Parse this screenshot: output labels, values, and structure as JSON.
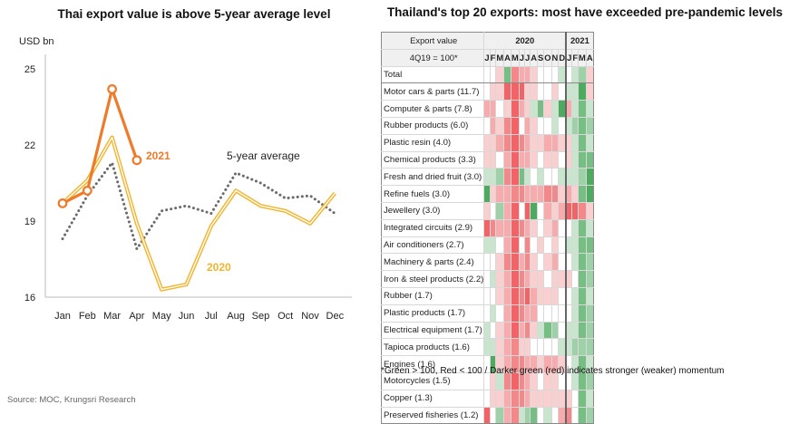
{
  "line_chart": {
    "title": "Thai export value is above 5-year average level",
    "y_unit": "USD bn",
    "months": [
      "Jan",
      "Feb",
      "Mar",
      "Apr",
      "May",
      "Jun",
      "Jul",
      "Aug",
      "Sep",
      "Oct",
      "Nov",
      "Dec"
    ],
    "yticks": [
      16,
      19,
      22,
      25
    ],
    "label_2021": "2021",
    "label_avg": "5-year average",
    "label_2020": "2020"
  },
  "chart_data": [
    {
      "type": "line",
      "title": "Thai export value is above 5-year average level",
      "ylabel": "USD bn",
      "ylim": [
        16,
        25
      ],
      "x": [
        "Jan",
        "Feb",
        "Mar",
        "Apr",
        "May",
        "Jun",
        "Jul",
        "Aug",
        "Sep",
        "Oct",
        "Nov",
        "Dec"
      ],
      "series": [
        {
          "name": "2021",
          "color": "#ef7a2a",
          "style": "solid-markers",
          "values": [
            19.7,
            20.2,
            24.2,
            21.4,
            null,
            null,
            null,
            null,
            null,
            null,
            null,
            null
          ]
        },
        {
          "name": "5-year average",
          "color": "#6b6b6b",
          "style": "dotted",
          "values": [
            18.3,
            20.0,
            21.3,
            17.9,
            19.4,
            19.6,
            19.3,
            20.9,
            20.5,
            19.9,
            20.0,
            19.3
          ]
        },
        {
          "name": "2020",
          "color": "#f3b32c",
          "style": "double",
          "values": [
            19.7,
            20.6,
            22.3,
            18.9,
            16.3,
            16.5,
            18.8,
            20.2,
            19.6,
            19.4,
            18.9,
            20.1
          ]
        }
      ],
      "grid": false,
      "legend": "direct-labels"
    },
    {
      "type": "heatmap",
      "title": "Thailand's top 20 exports: most have exceeded pre-pandemic levels",
      "header_label_1": "Export value",
      "header_label_2": "4Q19 = 100*",
      "years": [
        {
          "label": "2020",
          "span": 12
        },
        {
          "label": "2021",
          "span": 4
        }
      ],
      "months": [
        "J",
        "F",
        "M",
        "A",
        "M",
        "J",
        "J",
        "A",
        "S",
        "O",
        "N",
        "D",
        "J",
        "F",
        "M",
        "A"
      ],
      "legend_note": "*Green > 100, Red < 100 / Darker green (red) indicates stronger (weaker) momentum",
      "color_scale": {
        "positive": "#4daa5f",
        "negative": "#f06467",
        "neutral": "#ffffff"
      },
      "rows": [
        {
          "label": "Total",
          "values": [
            0,
            0,
            -1,
            3,
            -3,
            -2,
            -2,
            -1,
            0,
            0,
            0,
            1,
            0,
            1,
            2,
            -1
          ]
        },
        {
          "label": "Motor cars & parts (11.7)",
          "values": [
            0,
            -1,
            -1,
            -4,
            -4,
            -4,
            -1,
            -1,
            0,
            0,
            -1,
            0,
            1,
            1,
            4,
            -1
          ]
        },
        {
          "label": "Computer & parts (7.8)",
          "values": [
            -2,
            -2,
            0,
            -1,
            -4,
            -2,
            -1,
            1,
            3,
            -1,
            1,
            4,
            -2,
            1,
            3,
            1
          ]
        },
        {
          "label": "Rubber products (6.0)",
          "values": [
            0,
            -2,
            -1,
            -3,
            -4,
            0,
            -2,
            -1,
            0,
            0,
            1,
            0,
            1,
            2,
            3,
            2
          ]
        },
        {
          "label": "Plastic resin (4.0)",
          "values": [
            -1,
            -1,
            -2,
            -3,
            -4,
            -3,
            -2,
            -1,
            -1,
            -2,
            -2,
            -1,
            -1,
            1,
            3,
            1
          ]
        },
        {
          "label": "Chemical products (3.3)",
          "values": [
            -1,
            -1,
            0,
            -2,
            -4,
            -2,
            -2,
            -1,
            0,
            -1,
            -1,
            0,
            -1,
            1,
            3,
            3
          ]
        },
        {
          "label": "Fresh and dried fruit (3.0)",
          "values": [
            1,
            1,
            2,
            -3,
            -4,
            3,
            1,
            0,
            1,
            0,
            0,
            1,
            1,
            1,
            2,
            4
          ]
        },
        {
          "label": "Refine fuels (3.0)",
          "values": [
            4,
            -1,
            -2,
            -2,
            -3,
            -3,
            -2,
            -2,
            -2,
            -3,
            -3,
            -1,
            -2,
            -1,
            3,
            4
          ]
        },
        {
          "label": "Jewellery (3.0)",
          "values": [
            -1,
            0,
            2,
            -2,
            -4,
            0,
            -4,
            4,
            0,
            -2,
            -1,
            -2,
            -4,
            -4,
            -3,
            -1
          ]
        },
        {
          "label": "Integrated circuits (2.9)",
          "values": [
            -4,
            -3,
            -2,
            -2,
            -4,
            -3,
            -2,
            -1,
            0,
            -1,
            -2,
            0,
            0,
            1,
            3,
            1
          ]
        },
        {
          "label": "Air conditioners (2.7)",
          "values": [
            1,
            1,
            0,
            -2,
            -4,
            0,
            -3,
            0,
            -1,
            0,
            -1,
            0,
            1,
            1,
            3,
            3
          ]
        },
        {
          "label": "Machinery & parts (2.4)",
          "values": [
            0,
            0,
            -1,
            -3,
            -4,
            -2,
            -3,
            -1,
            0,
            -1,
            -2,
            0,
            0,
            1,
            3,
            2
          ]
        },
        {
          "label": "Iron & steel products (2.2)",
          "values": [
            0,
            1,
            -1,
            -2,
            -4,
            -3,
            -2,
            -1,
            -1,
            0,
            -1,
            -1,
            -1,
            0,
            3,
            2
          ]
        },
        {
          "label": "Rubber (1.7)",
          "values": [
            0,
            0,
            -1,
            -2,
            -4,
            -3,
            -4,
            -2,
            -1,
            -1,
            -1,
            0,
            0,
            1,
            3,
            1
          ]
        },
        {
          "label": "Plastic products (1.7)",
          "values": [
            0,
            1,
            0,
            -2,
            -4,
            -3,
            -2,
            -2,
            0,
            0,
            0,
            0,
            0,
            1,
            3,
            2
          ]
        },
        {
          "label": "Electrical equipment (1.7)",
          "values": [
            1,
            0,
            -1,
            -2,
            -4,
            -2,
            -3,
            -1,
            1,
            3,
            2,
            0,
            1,
            1,
            3,
            2
          ]
        },
        {
          "label": "Tapioca products (1.6)",
          "values": [
            1,
            1,
            -1,
            -2,
            -3,
            -1,
            -1,
            0,
            0,
            0,
            0,
            1,
            1,
            2,
            2,
            2
          ]
        },
        {
          "label": "Engines (1.6)",
          "values": [
            0,
            4,
            -1,
            -2,
            -3,
            -3,
            -2,
            -2,
            -1,
            -2,
            -2,
            -1,
            0,
            1,
            3,
            1
          ]
        },
        {
          "label": "Motorcycles (1.5)",
          "values": [
            0,
            -1,
            1,
            -3,
            -4,
            -3,
            -2,
            -1,
            0,
            -1,
            -1,
            0,
            0,
            1,
            3,
            2
          ]
        },
        {
          "label": "Copper (1.3)",
          "values": [
            0,
            -1,
            -1,
            -2,
            -3,
            -3,
            -2,
            -1,
            -1,
            -1,
            -1,
            -1,
            -1,
            0,
            3,
            1
          ]
        },
        {
          "label": "Preserved fisheries (1.2)",
          "values": [
            -4,
            0,
            2,
            -2,
            -3,
            1,
            2,
            3,
            0,
            1,
            0,
            -2,
            -3,
            0,
            3,
            2
          ]
        }
      ]
    }
  ],
  "source": "Source: MOC, Krungsri Research"
}
